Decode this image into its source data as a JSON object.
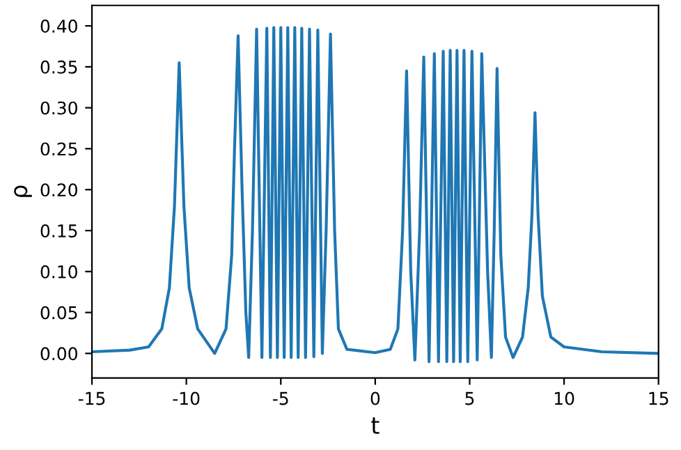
{
  "chart_data": {
    "type": "line",
    "xlabel": "t",
    "ylabel": "ρ",
    "xlim": [
      -15,
      15
    ],
    "xticks": [
      -15,
      -10,
      -5,
      0,
      5,
      10,
      15
    ],
    "ylim": [
      -0.03,
      0.425
    ],
    "yticks": [
      {
        "value": 0,
        "label": "0.00"
      },
      {
        "value": 0.05,
        "label": "0.05"
      },
      {
        "value": 0.1,
        "label": "0.10"
      },
      {
        "value": 0.15,
        "label": "0.15"
      },
      {
        "value": 0.2,
        "label": "0.20"
      },
      {
        "value": 0.25,
        "label": "0.25"
      },
      {
        "value": 0.3,
        "label": "0.30"
      },
      {
        "value": 0.35,
        "label": "0.35"
      },
      {
        "value": 0.4,
        "label": "0.40"
      }
    ],
    "grid": false,
    "line_style": "solid",
    "marker": "none",
    "series": [
      {
        "color": "#1f77b4",
        "x": [
          -15,
          -13,
          -12,
          -11.3,
          -10.9,
          -10.63,
          -10.38,
          -10.13,
          -9.85,
          -9.4,
          -8.5,
          -7.9,
          -7.6,
          -7.45,
          -7.26,
          -7.05,
          -6.85,
          -6.7,
          -6.5,
          -6.28,
          -6.0,
          -5.74,
          -5.55,
          -5.37,
          -5.18,
          -5.0,
          -4.82,
          -4.63,
          -4.45,
          -4.26,
          -4.08,
          -3.89,
          -3.69,
          -3.48,
          -3.25,
          -3.04,
          -2.8,
          -2.6,
          -2.37,
          -2.15,
          -1.95,
          -1.5,
          0,
          0.8,
          1.2,
          1.45,
          1.66,
          1.88,
          2.1,
          2.35,
          2.57,
          2.85,
          3.13,
          3.35,
          3.6,
          3.79,
          3.97,
          4.15,
          4.33,
          4.5,
          4.7,
          4.9,
          5.12,
          5.4,
          5.64,
          5.95,
          6.15,
          6.3,
          6.45,
          6.65,
          6.9,
          7.3,
          7.8,
          8.1,
          8.3,
          8.46,
          8.62,
          8.85,
          9.3,
          10,
          12,
          15
        ],
        "values": [
          0.002,
          0.004,
          0.008,
          0.03,
          0.08,
          0.18,
          0.355,
          0.18,
          0.08,
          0.03,
          0.0,
          0.03,
          0.12,
          0.25,
          0.388,
          0.2,
          0.05,
          -0.005,
          0.15,
          0.396,
          -0.005,
          0.397,
          -0.005,
          0.398,
          -0.005,
          0.398,
          -0.005,
          0.398,
          -0.005,
          0.398,
          -0.005,
          0.397,
          -0.005,
          0.396,
          -0.004,
          0.395,
          0.0,
          0.15,
          0.39,
          0.15,
          0.03,
          0.005,
          0.001,
          0.005,
          0.03,
          0.15,
          0.345,
          0.1,
          -0.008,
          0.15,
          0.362,
          -0.01,
          0.366,
          -0.01,
          0.369,
          -0.01,
          0.37,
          -0.01,
          0.37,
          -0.01,
          0.37,
          -0.01,
          0.369,
          -0.008,
          0.366,
          0.1,
          -0.005,
          0.15,
          0.348,
          0.12,
          0.02,
          -0.005,
          0.02,
          0.08,
          0.17,
          0.294,
          0.17,
          0.07,
          0.02,
          0.008,
          0.002,
          0.0
        ]
      }
    ]
  }
}
